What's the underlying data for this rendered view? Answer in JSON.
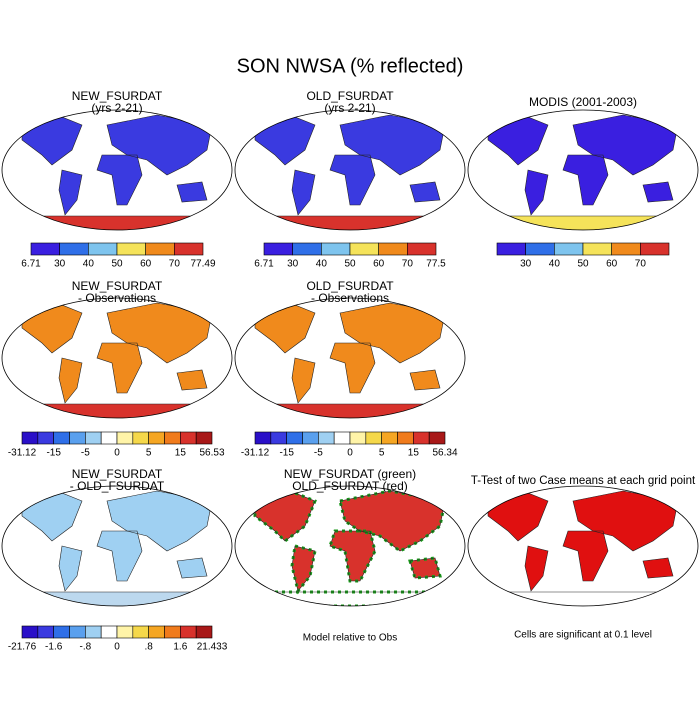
{
  "header": {
    "title": "SON NWSA (% reflected)"
  },
  "panels": [
    {
      "title": [
        "NEW_FSURDAT",
        "(yrs 2-21)"
      ],
      "colorbar": {
        "colors": [
          "#3a1fe0",
          "#2f6fe8",
          "#7ec4ee",
          "#f5e35a",
          "#f08a1c",
          "#d8322c"
        ],
        "labels": [
          "6.71",
          "30",
          "40",
          "50",
          "60",
          "70",
          "77.49"
        ]
      }
    },
    {
      "title": [
        "OLD_FSURDAT",
        "(yrs 2-21)"
      ],
      "colorbar": {
        "colors": [
          "#3a1fe0",
          "#2f6fe8",
          "#7ec4ee",
          "#f5e35a",
          "#f08a1c",
          "#d8322c"
        ],
        "labels": [
          "6.71",
          "30",
          "40",
          "50",
          "60",
          "70",
          "77.5"
        ]
      }
    },
    {
      "title": [
        "MODIS (2001-2003)"
      ],
      "colorbar": {
        "colors": [
          "#3a1fe0",
          "#2f6fe8",
          "#7ec4ee",
          "#f5e35a",
          "#f08a1c",
          "#d8322c"
        ],
        "labels": [
          "30",
          "40",
          "50",
          "60",
          "70"
        ]
      }
    },
    {
      "title": [
        "NEW_FSURDAT",
        "- Observations"
      ],
      "colorbar": {
        "colors": [
          "#2a10c8",
          "#3a3ae0",
          "#2f6fe8",
          "#5aa0ee",
          "#9fd0f2",
          "#ffffff",
          "#fff4a8",
          "#f5d84a",
          "#f5a623",
          "#f07b1c",
          "#d8322c",
          "#a81818"
        ],
        "labels": [
          "-31.12",
          "-15",
          "-5",
          "0",
          "5",
          "15",
          "56.53"
        ]
      }
    },
    {
      "title": [
        "OLD_FSURDAT",
        "- Observations"
      ],
      "colorbar": {
        "colors": [
          "#2a10c8",
          "#3a3ae0",
          "#2f6fe8",
          "#5aa0ee",
          "#9fd0f2",
          "#ffffff",
          "#fff4a8",
          "#f5d84a",
          "#f5a623",
          "#f07b1c",
          "#d8322c",
          "#a81818"
        ],
        "labels": [
          "-31.12",
          "-15",
          "-5",
          "0",
          "5",
          "15",
          "56.34"
        ]
      }
    },
    {
      "title": [
        "NEW_FSURDAT",
        "- OLD_FSURDAT"
      ],
      "colorbar": {
        "colors": [
          "#2a10c8",
          "#3a3ae0",
          "#2f6fe8",
          "#5aa0ee",
          "#9fd0f2",
          "#ffffff",
          "#fff4a8",
          "#f5d84a",
          "#f5a623",
          "#f07b1c",
          "#d8322c",
          "#a81818"
        ],
        "labels": [
          "-21.76",
          "-1.6",
          "-.8",
          "0",
          ".8",
          "1.6",
          "21.433"
        ]
      }
    },
    {
      "title": [
        "NEW_FSURDAT (green)",
        "OLD_FSURDAT (red)"
      ],
      "caption": "Model relative to Obs"
    },
    {
      "title": [
        "T-Test of two Case means at each grid point"
      ],
      "caption": "Cells are significant at 0.1 level"
    }
  ]
}
